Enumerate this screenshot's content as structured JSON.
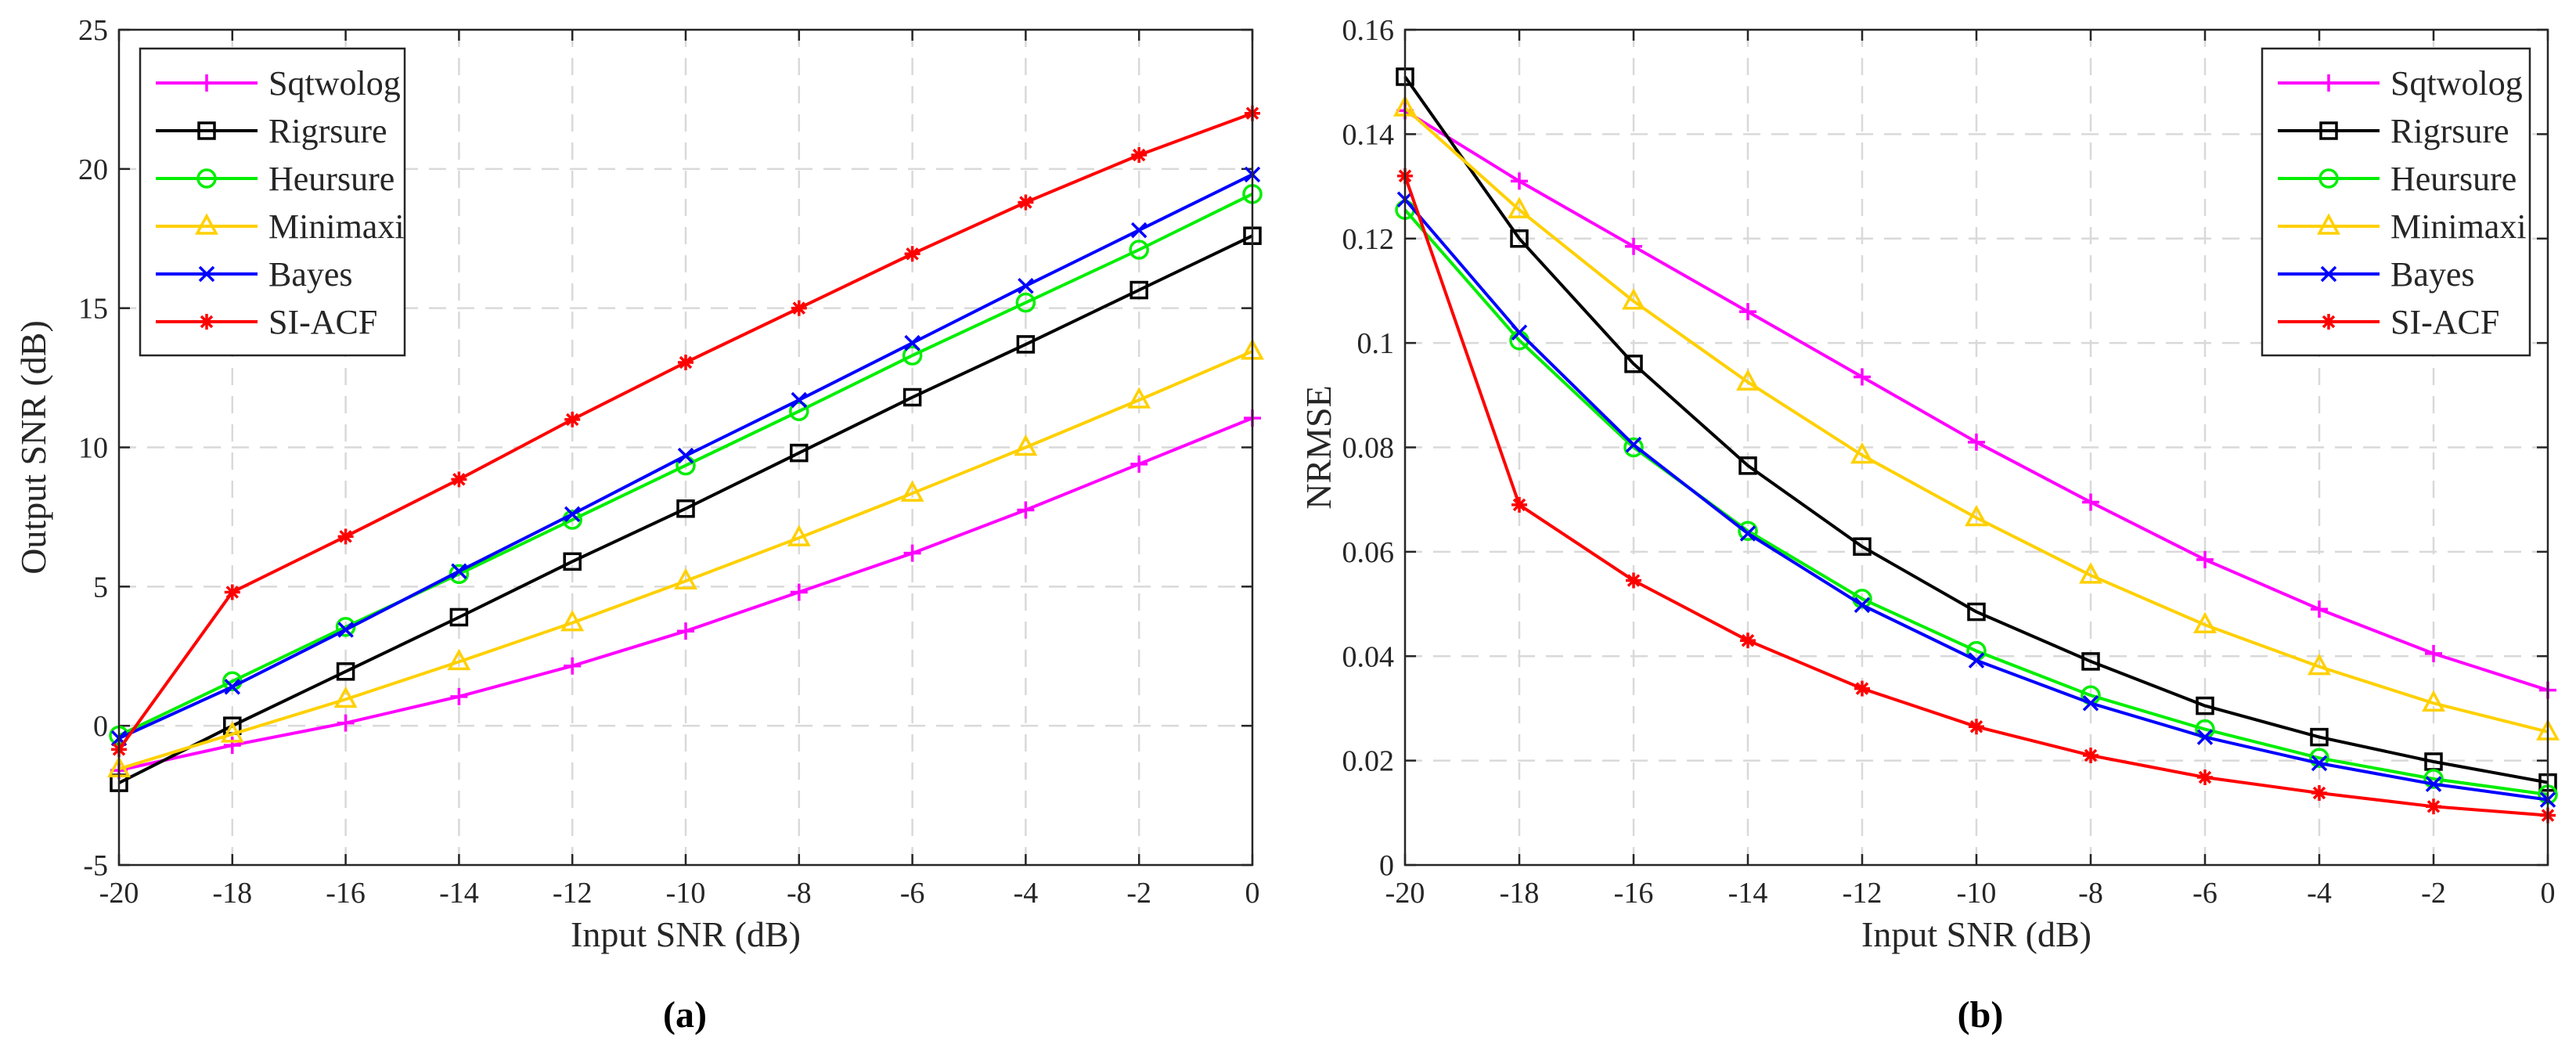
{
  "figure": {
    "captions": [
      "(a)",
      "(b)"
    ]
  },
  "chart_data": [
    {
      "type": "line",
      "panel": "(a)",
      "xlabel": "Input SNR (dB)",
      "ylabel": "Output SNR (dB)",
      "xlim": [
        -20,
        0
      ],
      "ylim": [
        -5,
        25
      ],
      "x": [
        -20,
        -18,
        -16,
        -14,
        -12,
        -10,
        -8,
        -6,
        -4,
        -2,
        0
      ],
      "xticks": [
        -20,
        -18,
        -16,
        -14,
        -12,
        -10,
        -8,
        -6,
        -4,
        -2,
        0
      ],
      "yticks": [
        -5,
        0,
        5,
        10,
        15,
        20,
        25
      ],
      "grid": true,
      "legend_position": "top-left",
      "series": [
        {
          "name": "Sqtwolog",
          "color": "#ff00ff",
          "marker": "plus",
          "values": [
            -1.6,
            -0.7,
            0.1,
            1.05,
            2.15,
            3.4,
            4.8,
            6.2,
            7.75,
            9.4,
            11.05
          ]
        },
        {
          "name": "Rigrsure",
          "color": "#000000",
          "marker": "square",
          "values": [
            -2.05,
            0.0,
            1.95,
            3.9,
            5.9,
            7.8,
            9.8,
            11.8,
            13.7,
            15.65,
            17.6
          ]
        },
        {
          "name": "Heursure",
          "color": "#00ee00",
          "marker": "circle",
          "values": [
            -0.35,
            1.6,
            3.55,
            5.45,
            7.4,
            9.35,
            11.3,
            13.3,
            15.2,
            17.1,
            19.1
          ]
        },
        {
          "name": "Minimaxi",
          "color": "#ffd000",
          "marker": "triangle",
          "values": [
            -1.55,
            -0.3,
            0.95,
            2.3,
            3.7,
            5.2,
            6.75,
            8.35,
            10.0,
            11.7,
            13.45
          ]
        },
        {
          "name": "Bayes",
          "color": "#0000ff",
          "marker": "x",
          "values": [
            -0.45,
            1.4,
            3.45,
            5.55,
            7.6,
            9.7,
            11.7,
            13.75,
            15.8,
            17.8,
            19.8
          ]
        },
        {
          "name": "SI-ACF",
          "color": "#ff0000",
          "marker": "star",
          "values": [
            -0.85,
            4.8,
            6.8,
            8.85,
            11.0,
            13.05,
            15.0,
            16.95,
            18.8,
            20.5,
            22.0
          ]
        }
      ]
    },
    {
      "type": "line",
      "panel": "(b)",
      "xlabel": "Input SNR (dB)",
      "ylabel": "NRMSE",
      "xlim": [
        -20,
        0
      ],
      "ylim": [
        0,
        0.16
      ],
      "x": [
        -20,
        -18,
        -16,
        -14,
        -12,
        -10,
        -8,
        -6,
        -4,
        -2,
        0
      ],
      "xticks": [
        -20,
        -18,
        -16,
        -14,
        -12,
        -10,
        -8,
        -6,
        -4,
        -2,
        0
      ],
      "yticks": [
        0,
        0.02,
        0.04,
        0.06,
        0.08,
        0.1,
        0.12,
        0.14,
        0.16
      ],
      "grid": true,
      "legend_position": "top-right",
      "series": [
        {
          "name": "Sqtwolog",
          "color": "#ff00ff",
          "marker": "plus",
          "values": [
            0.1445,
            0.131,
            0.1185,
            0.106,
            0.0935,
            0.081,
            0.0695,
            0.0585,
            0.049,
            0.0405,
            0.0335
          ]
        },
        {
          "name": "Rigrsure",
          "color": "#000000",
          "marker": "square",
          "values": [
            0.151,
            0.12,
            0.096,
            0.0765,
            0.061,
            0.0485,
            0.039,
            0.0305,
            0.0245,
            0.0198,
            0.0158
          ]
        },
        {
          "name": "Heursure",
          "color": "#00ee00",
          "marker": "circle",
          "values": [
            0.1255,
            0.1005,
            0.08,
            0.064,
            0.051,
            0.041,
            0.0325,
            0.026,
            0.0205,
            0.0165,
            0.0135
          ]
        },
        {
          "name": "Minimaxi",
          "color": "#ffd000",
          "marker": "triangle",
          "values": [
            0.145,
            0.1255,
            0.108,
            0.0925,
            0.0785,
            0.0665,
            0.0555,
            0.046,
            0.038,
            0.031,
            0.0255
          ]
        },
        {
          "name": "Bayes",
          "color": "#0000ff",
          "marker": "x",
          "values": [
            0.1275,
            0.102,
            0.0805,
            0.0635,
            0.0498,
            0.0392,
            0.031,
            0.0245,
            0.0195,
            0.0155,
            0.0125
          ]
        },
        {
          "name": "SI-ACF",
          "color": "#ff0000",
          "marker": "star",
          "values": [
            0.132,
            0.069,
            0.0545,
            0.043,
            0.0338,
            0.0265,
            0.021,
            0.0168,
            0.0138,
            0.0112,
            0.0095
          ]
        }
      ]
    }
  ]
}
